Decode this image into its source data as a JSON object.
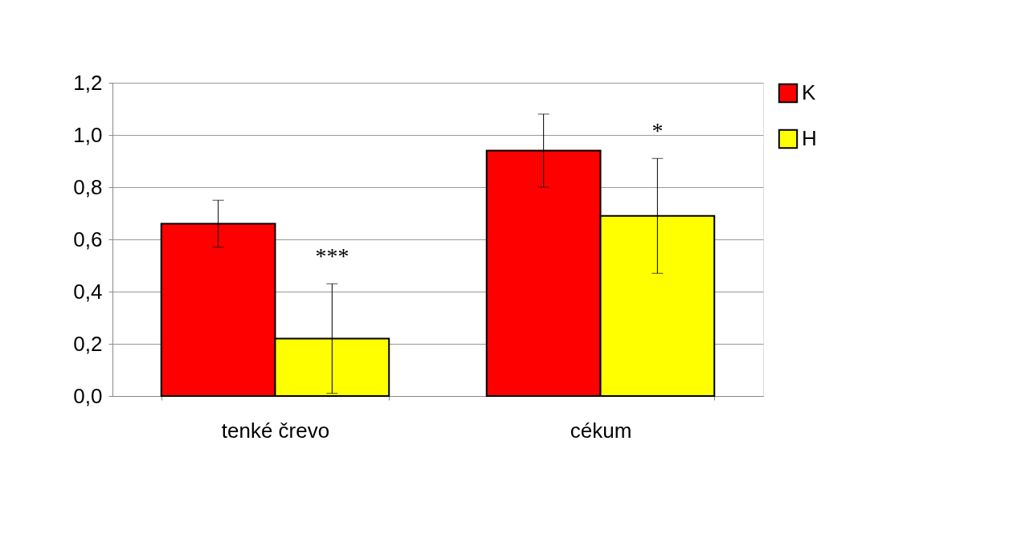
{
  "chart_data": {
    "type": "bar",
    "categories": [
      "tenké črevo",
      "cékum"
    ],
    "series": [
      {
        "name": "K",
        "color": "#ff0000",
        "values": [
          0.66,
          0.94
        ],
        "errors": [
          [
            0.57,
            0.75
          ],
          [
            0.8,
            1.08
          ]
        ]
      },
      {
        "name": "H",
        "color": "#ffff00",
        "values": [
          0.22,
          0.69
        ],
        "errors": [
          [
            0.01,
            0.43
          ],
          [
            0.47,
            0.91
          ]
        ]
      }
    ],
    "ylim": [
      0,
      1.2
    ],
    "yticks": [
      {
        "value": 0,
        "label": "0,0"
      },
      {
        "value": 0.2,
        "label": "0,2"
      },
      {
        "value": 0.4,
        "label": "0,4"
      },
      {
        "value": 0.6,
        "label": "0,6"
      },
      {
        "value": 0.8,
        "label": "0,8"
      },
      {
        "value": 1.0,
        "label": "1,0"
      },
      {
        "value": 1.2,
        "label": "1,2"
      }
    ],
    "grid": "y",
    "legend": "right",
    "annotations": [
      "***",
      "*"
    ]
  }
}
